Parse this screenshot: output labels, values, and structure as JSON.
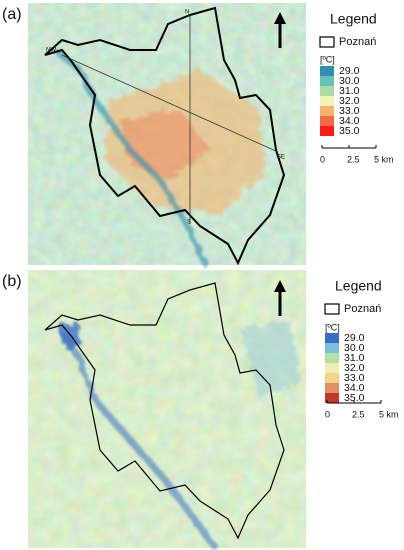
{
  "panels": [
    {
      "label": "(a)",
      "legend_title": "Legend",
      "boundary_label": "Poznań",
      "unit": "[ºC]",
      "classes": [
        {
          "label": "29.0",
          "color": "#2f8fb5"
        },
        {
          "label": "30.0",
          "color": "#64c2b8"
        },
        {
          "label": "31.0",
          "color": "#a9dba4"
        },
        {
          "label": "32.0",
          "color": "#f2f2b8"
        },
        {
          "label": "33.0",
          "color": "#f9b26a"
        },
        {
          "label": "34.0",
          "color": "#f26b45"
        },
        {
          "label": "35.0",
          "color": "#ff1a1a"
        }
      ],
      "scale": [
        "0",
        "2.5",
        "5 km"
      ],
      "map_labels": [
        "N",
        "NW",
        "SE",
        "S"
      ]
    },
    {
      "label": "(b)",
      "legend_title": "Legend",
      "boundary_label": "Poznań",
      "unit": "[ºC]",
      "classes": [
        {
          "label": "29.0",
          "color": "#3b6fc6"
        },
        {
          "label": "30.0",
          "color": "#7dbde0"
        },
        {
          "label": "31.0",
          "color": "#b6e0a6"
        },
        {
          "label": "32.0",
          "color": "#eeeeb4"
        },
        {
          "label": "33.0",
          "color": "#f3d384"
        },
        {
          "label": "34.0",
          "color": "#e38d62"
        },
        {
          "label": "35.0",
          "color": "#c0392b"
        }
      ],
      "scale": [
        "0",
        "2.5",
        "5 km"
      ]
    }
  ]
}
